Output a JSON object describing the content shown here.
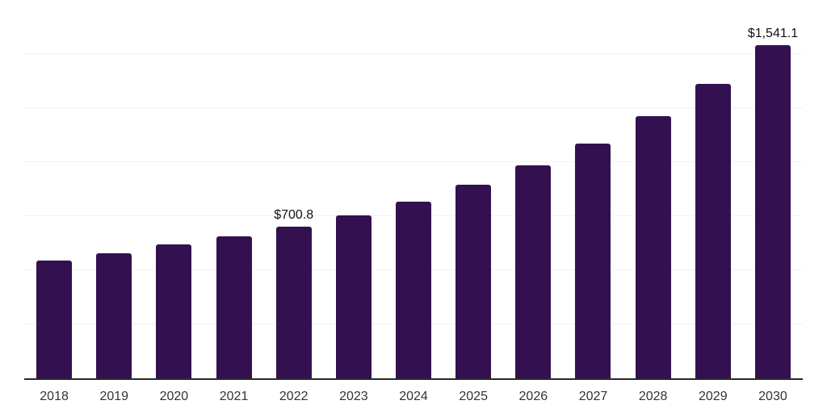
{
  "chart_data": {
    "type": "bar",
    "title": "",
    "xlabel": "",
    "ylabel": "",
    "categories": [
      "2018",
      "2019",
      "2020",
      "2021",
      "2022",
      "2023",
      "2024",
      "2025",
      "2026",
      "2027",
      "2028",
      "2029",
      "2030"
    ],
    "values": [
      543,
      580,
      618,
      656,
      700.8,
      754,
      818,
      894,
      984,
      1086,
      1214,
      1363,
      1541.1
    ],
    "value_labels": [
      "",
      "",
      "",
      "",
      "$700.8",
      "",
      "",
      "",
      "",
      "",
      "",
      "",
      "$1,541.1"
    ],
    "ylim": [
      0,
      1750
    ],
    "gridline_interval": 250,
    "grid": "horizontal-only",
    "y_tick_labels_shown": false,
    "legend_position": "none"
  },
  "colors": {
    "bar": "#331150",
    "gridline": "#f2f2f2",
    "axis_line": "#2a2a2a",
    "tick_label": "#333333",
    "value_label": "#111111",
    "background": "#ffffff"
  }
}
